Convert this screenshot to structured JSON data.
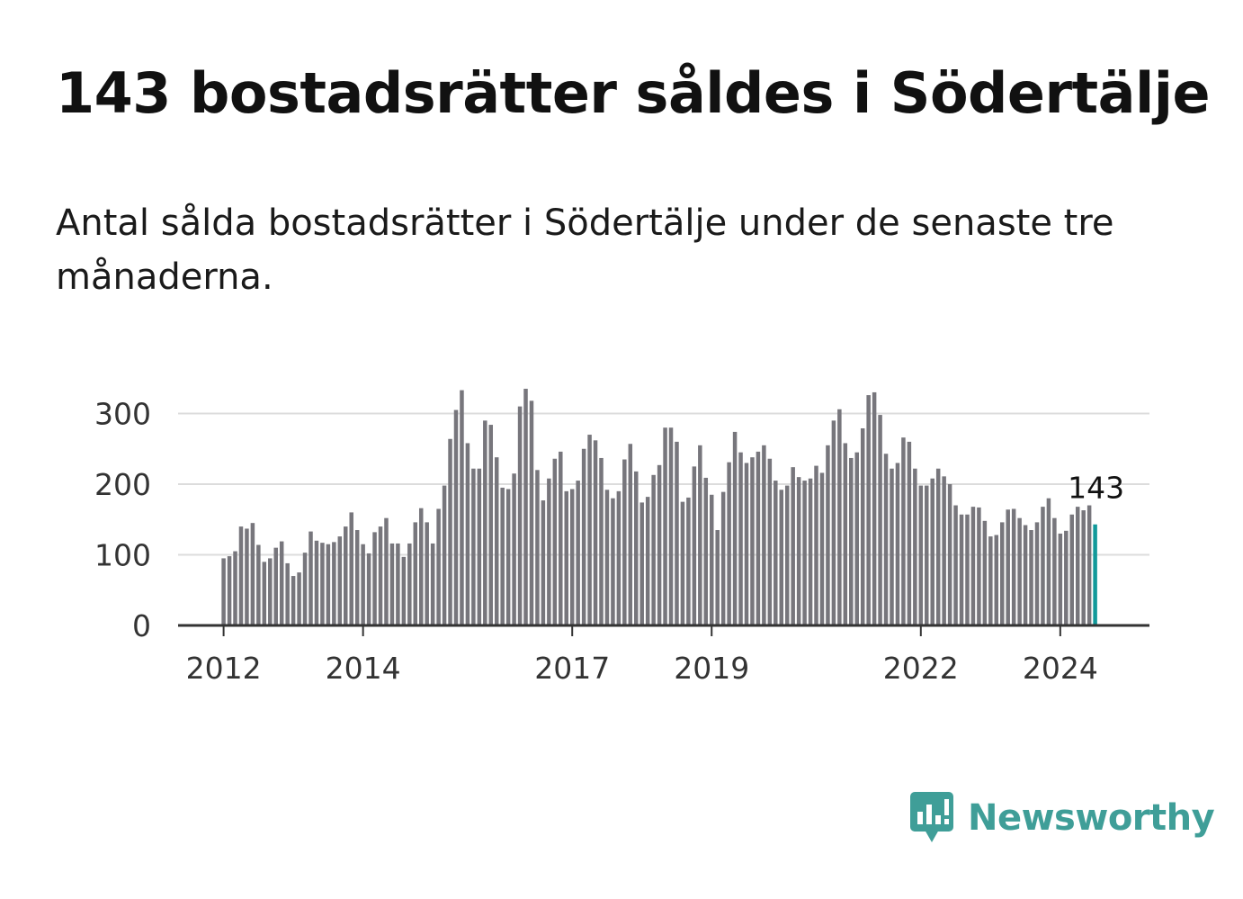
{
  "header": {
    "title": "143 bostadsrätter såldes i Södertälje",
    "subtitle": "Antal sålda bostadsrätter i Södertälje under de senaste tre månaderna."
  },
  "brand": {
    "name": "Newsworthy",
    "color": "#3f9e98",
    "icon": "newsworthy-logo-icon"
  },
  "colors": {
    "bar": "#77767c",
    "highlight": "#11999a",
    "grid": "#dcdcdc",
    "axis": "#333333"
  },
  "chart_data": {
    "type": "bar",
    "title": "143 bostadsrätter såldes i Södertälje",
    "subtitle": "Antal sålda bostadsrätter i Södertälje under de senaste tre månaderna.",
    "xlabel": "",
    "ylabel": "",
    "ylim": [
      0,
      300
    ],
    "yticks": [
      0,
      100,
      200,
      300
    ],
    "grid": true,
    "x_start": "2012-01",
    "x_tick_labels": [
      "2012",
      "2014",
      "2017",
      "2019",
      "2022",
      "2024"
    ],
    "x_tick_index": [
      0,
      24,
      60,
      84,
      120,
      144
    ],
    "highlight_index": 150,
    "highlight_label": "143",
    "series": [
      {
        "name": "Antal sålda bostadsrätter (rullande tre månader)",
        "values": [
          95,
          98,
          105,
          140,
          137,
          145,
          114,
          90,
          95,
          110,
          119,
          88,
          70,
          75,
          103,
          133,
          120,
          117,
          115,
          118,
          126,
          140,
          160,
          135,
          115,
          102,
          132,
          140,
          152,
          116,
          116,
          97,
          116,
          146,
          166,
          146,
          116,
          165,
          198,
          264,
          305,
          333,
          258,
          222,
          222,
          290,
          284,
          238,
          195,
          193,
          215,
          310,
          335,
          318,
          220,
          177,
          208,
          236,
          246,
          190,
          193,
          205,
          250,
          270,
          262,
          237,
          192,
          180,
          190,
          235,
          257,
          218,
          174,
          182,
          213,
          227,
          280,
          280,
          260,
          175,
          181,
          225,
          255,
          209,
          185,
          135,
          189,
          231,
          274,
          245,
          230,
          238,
          246,
          255,
          236,
          205,
          192,
          198,
          224,
          210,
          205,
          208,
          226,
          216,
          255,
          290,
          306,
          258,
          237,
          245,
          279,
          326,
          330,
          298,
          243,
          222,
          230,
          266,
          260,
          222,
          198,
          198,
          208,
          222,
          211,
          200,
          170,
          157,
          157,
          168,
          167,
          148,
          126,
          128,
          146,
          164,
          165,
          152,
          142,
          135,
          146,
          168,
          180,
          152,
          130,
          134,
          157,
          168,
          163,
          170,
          143
        ]
      }
    ]
  }
}
